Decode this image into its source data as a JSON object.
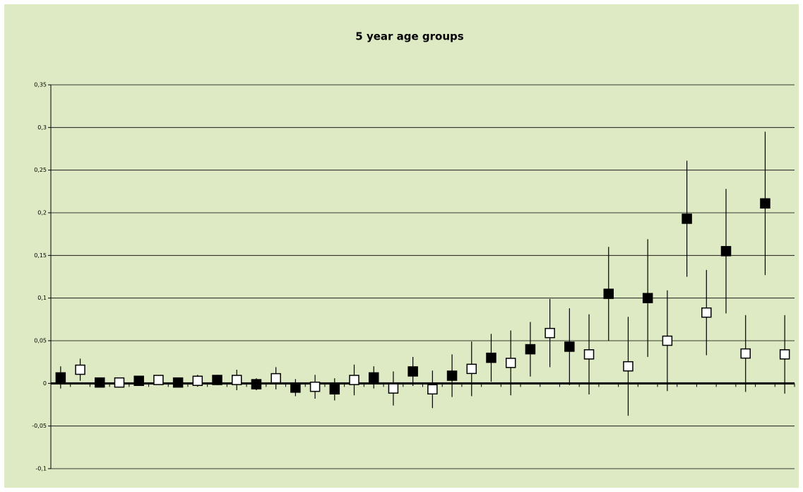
{
  "chart_data": {
    "type": "scatter",
    "title": "5 year age groups",
    "categories": [
      null,
      null,
      null,
      null,
      null,
      null,
      null,
      null,
      null,
      null,
      null,
      null,
      null,
      null,
      null,
      null,
      null,
      null,
      null,
      null,
      null,
      null,
      null,
      null,
      null,
      null,
      null,
      null,
      null,
      null,
      null,
      null,
      null,
      null,
      null,
      null,
      null,
      null
    ],
    "series": [
      {
        "color": "#000000",
        "marker": "filled",
        "values": [
          0.007,
          null,
          0.001,
          null,
          0.003,
          null,
          0.001,
          null,
          0.004,
          null,
          -0.001,
          null,
          -0.005,
          null,
          -0.007,
          null,
          0.007,
          null,
          0.014,
          null,
          0.009,
          null,
          0.03,
          null,
          0.04,
          null,
          0.043,
          null,
          0.105,
          null,
          0.1,
          null,
          0.193,
          null,
          0.155,
          null,
          0.211,
          null
        ],
        "errors": [
          0.013,
          null,
          0.003,
          null,
          0.003,
          null,
          0.005,
          null,
          0.006,
          null,
          0.007,
          null,
          0.01,
          null,
          0.013,
          null,
          0.013,
          null,
          0.017,
          null,
          0.025,
          null,
          0.028,
          null,
          0.032,
          null,
          0.045,
          null,
          0.055,
          null,
          0.069,
          null,
          0.068,
          null,
          0.073,
          null,
          0.084,
          null
        ]
      },
      {
        "color": "#ffffff",
        "marker": "hollow",
        "values": [
          null,
          0.016,
          null,
          0.001,
          null,
          0.004,
          null,
          0.003,
          null,
          0.004,
          null,
          0.006,
          null,
          -0.004,
          null,
          0.004,
          null,
          -0.006,
          null,
          -0.007,
          null,
          0.017,
          null,
          0.024,
          null,
          0.059,
          null,
          0.034,
          null,
          0.02,
          null,
          0.05,
          null,
          0.083,
          null,
          0.035,
          null,
          0.034
        ],
        "errors": [
          null,
          0.013,
          null,
          0.003,
          null,
          0.003,
          null,
          0.007,
          null,
          0.012,
          null,
          0.013,
          null,
          0.014,
          null,
          0.018,
          null,
          0.02,
          null,
          0.022,
          null,
          0.032,
          null,
          0.038,
          null,
          0.04,
          null,
          0.047,
          null,
          0.058,
          null,
          0.059,
          null,
          0.05,
          null,
          0.045,
          null,
          0.046
        ]
      }
    ],
    "ylim": [
      -0.1,
      0.35
    ],
    "yticks": [
      {
        "value": -0.1,
        "label": "-0,1"
      },
      {
        "value": -0.05,
        "label": "-0,05"
      },
      0,
      {
        "value": 0.05,
        "label": "0,05"
      },
      {
        "value": 0.1,
        "label": "0,1"
      },
      {
        "value": 0.15,
        "label": "0,15"
      },
      {
        "value": 0.2,
        "label": "0,2"
      },
      {
        "value": 0.25,
        "label": "0,25"
      },
      {
        "value": 0.3,
        "label": "0,3"
      },
      {
        "value": 0.35,
        "label": "0,35"
      }
    ],
    "grid": true
  }
}
